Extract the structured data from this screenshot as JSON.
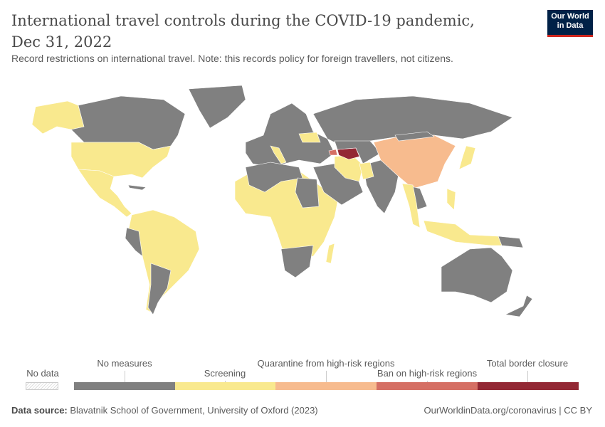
{
  "header": {
    "title": "International travel controls during the COVID-19 pandemic, Dec 31, 2022",
    "subtitle": "Record restrictions on international travel. Note: this records policy for foreign travellers, not citizens.",
    "logo": "Our World in Data"
  },
  "legend": {
    "no_data": {
      "label": "No data",
      "color": "hatched"
    },
    "categories": [
      {
        "label": "No measures",
        "color": "#808080"
      },
      {
        "label": "Screening",
        "color": "#f9e98e"
      },
      {
        "label": "Quarantine from high-risk regions",
        "color": "#f7bb8e"
      },
      {
        "label": "Ban on high-risk regions",
        "color": "#d56f64"
      },
      {
        "label": "Total border closure",
        "color": "#932834"
      }
    ]
  },
  "footer": {
    "source_label": "Data source:",
    "source": "Blavatnik School of Government, University of Oxford (2023)",
    "link": "OurWorldinData.org/coronavirus | CC BY"
  }
}
